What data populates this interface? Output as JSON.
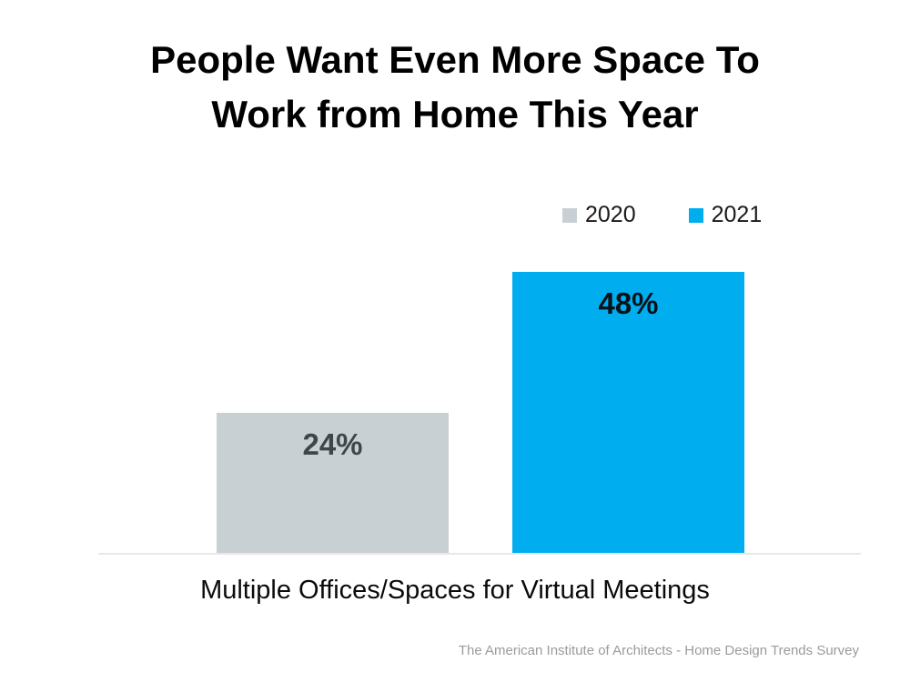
{
  "title": {
    "line1": "People Want Even More Space To",
    "line2": "Work from Home This Year"
  },
  "chart_data": {
    "type": "bar",
    "title": "People Want Even More Space To Work from Home This Year",
    "categories": [
      "Multiple Offices/Spaces for Virtual Meetings"
    ],
    "series": [
      {
        "name": "2020",
        "values": [
          24
        ],
        "label": "24%",
        "color": "#c9d0d4"
      },
      {
        "name": "2021",
        "values": [
          48
        ],
        "label": "48%",
        "color": "#00aeef"
      }
    ],
    "xlabel": "Multiple Offices/Spaces for Virtual Meetings",
    "ylabel": "",
    "ylim": [
      0,
      56
    ],
    "grid": false,
    "legend_position": "top-right",
    "value_labels": "inside-top"
  },
  "footer": {
    "source": "The American Institute of Architects - Home Design Trends Survey"
  }
}
